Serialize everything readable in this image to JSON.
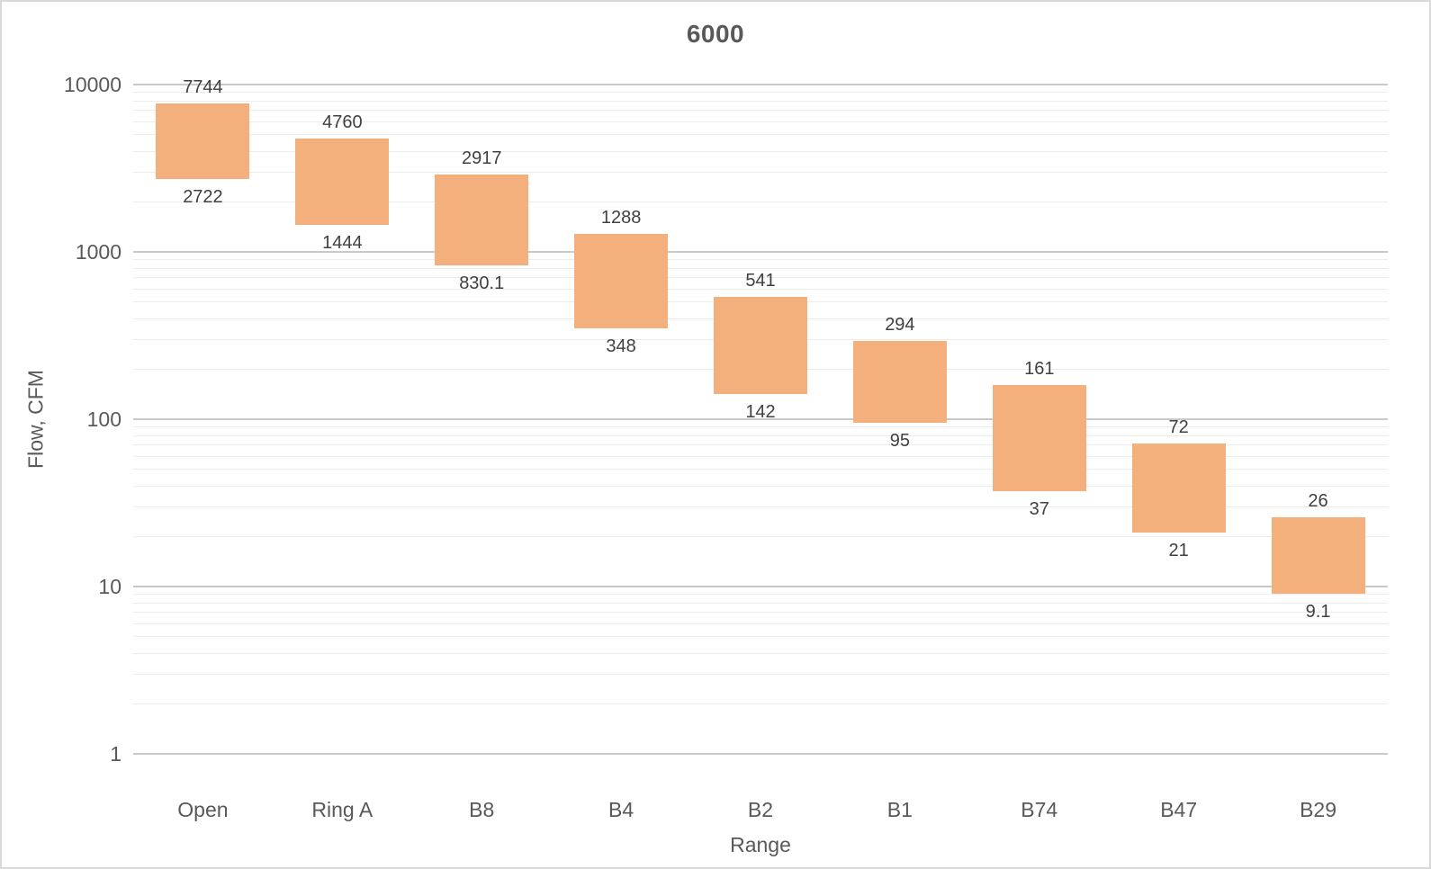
{
  "chart_data": {
    "type": "bar",
    "subtype": "floating-column-range",
    "title": "6000",
    "xlabel": "Range",
    "ylabel": "Flow, CFM",
    "legend": "none",
    "grid": true,
    "categories": [
      "Open",
      "Ring A",
      "B8",
      "B4",
      "B2",
      "B1",
      "B74",
      "B47",
      "B29"
    ],
    "series": [
      {
        "name": "Flow range",
        "high": [
          7744,
          4760,
          2917,
          1288,
          541,
          294,
          161,
          72,
          26
        ],
        "low": [
          2722,
          1444,
          830.1,
          348,
          142,
          95,
          37,
          21,
          9.1
        ],
        "high_labels": [
          "7744",
          "4760",
          "2917",
          "1288",
          "541",
          "294",
          "161",
          "72",
          "26"
        ],
        "low_labels": [
          "2722",
          "1444",
          "830.1",
          "348",
          "142",
          "95",
          "37",
          "21",
          "9.1"
        ]
      }
    ],
    "y_axis": {
      "scale": "log10",
      "min": 1,
      "max": 10000,
      "major_ticks": [
        10000,
        1000,
        100,
        10,
        1
      ],
      "major_tick_labels": [
        "10000",
        "1000",
        "100",
        "10",
        "1"
      ],
      "minor_gridlines": "multiples 2-9 of each decade"
    },
    "colors": {
      "bar_fill": "#F3B07D",
      "grid_major": "#C9C9C9",
      "grid_minor": "#ECECEC",
      "title_text": "#595959",
      "axis_text": "#595959",
      "data_label_text": "#404040",
      "canvas_border": "#D9D9D9",
      "background": "#FFFFFF"
    }
  }
}
